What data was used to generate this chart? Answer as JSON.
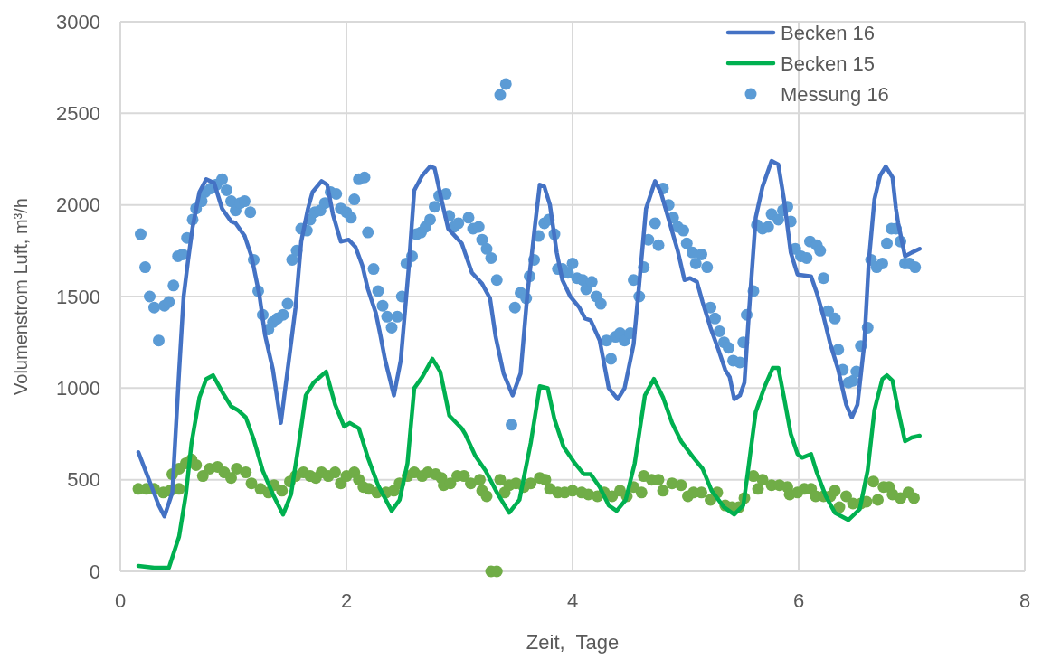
{
  "chart_data": {
    "type": "line",
    "xlabel": "Zeit,  Tage",
    "ylabel": "Volumenstrom Luft, m³/h",
    "xlim": [
      0,
      8
    ],
    "xticks": [
      0,
      2,
      4,
      6,
      8
    ],
    "ylim": [
      0,
      3000
    ],
    "yticks": [
      0,
      500,
      1000,
      1500,
      2000,
      2500,
      3000
    ],
    "grid": true,
    "legend": "top right",
    "series": [
      {
        "name": "Becken 16",
        "color": "#4472c4",
        "line_style": "solid",
        "x": [
          0.16,
          0.34,
          0.39,
          0.46,
          0.52,
          0.56,
          0.6,
          0.64,
          0.7,
          0.76,
          0.83,
          0.9,
          0.98,
          1.02,
          1.1,
          1.16,
          1.23,
          1.28,
          1.35,
          1.42,
          1.48,
          1.55,
          1.6,
          1.66,
          1.7,
          1.78,
          1.83,
          1.88,
          1.95,
          2.02,
          2.08,
          2.14,
          2.19,
          2.26,
          2.3,
          2.34,
          2.42,
          2.48,
          2.55,
          2.6,
          2.67,
          2.74,
          2.78,
          2.84,
          2.9,
          2.96,
          3.02,
          3.11,
          3.2,
          3.27,
          3.32,
          3.39,
          3.47,
          3.54,
          3.6,
          3.67,
          3.71,
          3.75,
          3.8,
          3.86,
          3.91,
          3.98,
          4.06,
          4.11,
          4.16,
          4.24,
          4.32,
          4.4,
          4.46,
          4.54,
          4.59,
          4.65,
          4.73,
          4.78,
          4.86,
          4.93,
          4.99,
          5.04,
          5.1,
          5.15,
          5.22,
          5.29,
          5.35,
          5.39,
          5.43,
          5.48,
          5.52,
          5.56,
          5.62,
          5.68,
          5.76,
          5.82,
          5.87,
          5.93,
          5.99,
          6.11,
          6.16,
          6.22,
          6.28,
          6.35,
          6.42,
          6.47,
          6.52,
          6.58,
          6.62,
          6.67,
          6.72,
          6.77,
          6.83,
          6.86,
          6.88,
          6.94,
          7.0,
          7.07
        ],
        "values": [
          650,
          360,
          300,
          430,
          1090,
          1500,
          1700,
          1880,
          2070,
          2140,
          2120,
          1980,
          1910,
          1900,
          1830,
          1720,
          1510,
          1290,
          1100,
          810,
          1100,
          1440,
          1800,
          1980,
          2070,
          2130,
          2110,
          1950,
          1800,
          1810,
          1770,
          1670,
          1540,
          1410,
          1290,
          1160,
          960,
          1150,
          1650,
          2080,
          2160,
          2210,
          2200,
          2030,
          1870,
          1830,
          1790,
          1630,
          1570,
          1490,
          1280,
          1080,
          960,
          1080,
          1510,
          1900,
          2110,
          2100,
          2000,
          1740,
          1590,
          1500,
          1440,
          1380,
          1370,
          1260,
          1000,
          940,
          1000,
          1240,
          1570,
          1980,
          2130,
          2070,
          1900,
          1750,
          1590,
          1600,
          1580,
          1470,
          1330,
          1210,
          1100,
          1060,
          940,
          960,
          1030,
          1410,
          1930,
          2100,
          2240,
          2220,
          2030,
          1740,
          1620,
          1610,
          1520,
          1390,
          1240,
          1100,
          910,
          840,
          910,
          1240,
          1690,
          2030,
          2160,
          2210,
          2150,
          1980,
          1900,
          1720,
          1740,
          1760
        ]
      },
      {
        "name": "Becken 15",
        "color": "#00b050",
        "line_style": "solid",
        "x": [
          0.16,
          0.3,
          0.43,
          0.52,
          0.58,
          0.63,
          0.7,
          0.76,
          0.82,
          0.91,
          0.98,
          1.04,
          1.11,
          1.18,
          1.26,
          1.35,
          1.44,
          1.51,
          1.58,
          1.64,
          1.71,
          1.82,
          1.9,
          1.98,
          2.03,
          2.11,
          2.19,
          2.28,
          2.4,
          2.47,
          2.54,
          2.6,
          2.67,
          2.76,
          2.83,
          2.91,
          3.02,
          3.05,
          3.14,
          3.23,
          3.34,
          3.44,
          3.53,
          3.63,
          3.71,
          3.78,
          3.84,
          3.92,
          4.02,
          4.1,
          4.16,
          4.24,
          4.32,
          4.39,
          4.47,
          4.55,
          4.64,
          4.72,
          4.8,
          4.88,
          4.96,
          5.07,
          5.15,
          5.23,
          5.34,
          5.43,
          5.51,
          5.55,
          5.62,
          5.7,
          5.77,
          5.82,
          5.87,
          5.93,
          5.99,
          6.03,
          6.11,
          6.16,
          6.24,
          6.32,
          6.44,
          6.54,
          6.61,
          6.67,
          6.74,
          6.78,
          6.83,
          6.88,
          6.94,
          7.0,
          7.07
        ],
        "values": [
          30,
          20,
          20,
          190,
          420,
          700,
          950,
          1050,
          1070,
          970,
          900,
          880,
          840,
          720,
          550,
          420,
          310,
          420,
          700,
          960,
          1030,
          1090,
          910,
          790,
          810,
          780,
          620,
          470,
          330,
          390,
          590,
          1000,
          1060,
          1160,
          1090,
          850,
          780,
          750,
          630,
          550,
          420,
          320,
          390,
          700,
          1010,
          1000,
          830,
          680,
          590,
          530,
          530,
          460,
          360,
          330,
          390,
          590,
          960,
          1050,
          950,
          810,
          710,
          620,
          560,
          440,
          350,
          310,
          360,
          540,
          870,
          1010,
          1110,
          1110,
          950,
          750,
          640,
          620,
          640,
          540,
          410,
          320,
          280,
          340,
          550,
          880,
          1050,
          1070,
          1040,
          880,
          710,
          730,
          740
        ]
      },
      {
        "name": "Messung 16",
        "type": "scatter",
        "marker": "circle",
        "color": "#5b9bd5",
        "x": [
          0.18,
          0.22,
          0.26,
          0.3,
          0.34,
          0.39,
          0.43,
          0.47,
          0.51,
          0.55,
          0.59,
          0.64,
          0.67,
          0.72,
          0.75,
          0.8,
          0.85,
          0.9,
          0.94,
          0.98,
          1.02,
          1.06,
          1.1,
          1.15,
          1.18,
          1.22,
          1.26,
          1.31,
          1.35,
          1.39,
          1.44,
          1.48,
          1.52,
          1.56,
          1.6,
          1.65,
          1.68,
          1.72,
          1.77,
          1.81,
          1.86,
          1.91,
          1.95,
          2.0,
          2.04,
          2.07,
          2.11,
          2.16,
          2.19,
          2.24,
          2.28,
          2.32,
          2.36,
          2.4,
          2.45,
          2.49,
          2.53,
          2.58,
          2.62,
          2.66,
          2.7,
          2.74,
          2.78,
          2.82,
          2.88,
          2.91,
          2.95,
          2.99,
          3.08,
          3.12,
          3.17,
          3.2,
          3.24,
          3.28,
          3.33,
          3.36,
          3.41,
          3.46,
          3.49,
          3.54,
          3.59,
          3.62,
          3.66,
          3.7,
          3.75,
          3.79,
          3.84,
          3.87,
          3.91,
          3.96,
          4.0,
          4.04,
          4.09,
          4.12,
          4.17,
          4.21,
          4.25,
          4.3,
          4.34,
          4.38,
          4.42,
          4.46,
          4.51,
          4.54,
          4.59,
          4.63,
          4.67,
          4.73,
          4.76,
          4.8,
          4.85,
          4.89,
          4.93,
          4.98,
          5.01,
          5.06,
          5.09,
          5.14,
          5.19,
          5.22,
          5.26,
          5.3,
          5.34,
          5.38,
          5.42,
          5.48,
          5.51,
          5.54,
          5.6,
          5.63,
          5.68,
          5.73,
          5.76,
          5.82,
          5.86,
          5.9,
          5.93,
          5.97,
          6.02,
          6.07,
          6.1,
          6.16,
          6.19,
          6.22,
          6.26,
          6.32,
          6.35,
          6.39,
          6.44,
          6.48,
          6.51,
          6.55,
          6.61,
          6.64,
          6.69,
          6.74,
          6.78,
          6.82,
          6.86,
          6.9,
          6.94,
          6.98,
          7.03
        ],
        "values": [
          1840,
          1660,
          1500,
          1440,
          1260,
          1450,
          1470,
          1560,
          1720,
          1730,
          1820,
          1920,
          1980,
          2020,
          2070,
          2090,
          2110,
          2140,
          2080,
          2020,
          1970,
          2010,
          2020,
          1960,
          1700,
          1530,
          1400,
          1320,
          1360,
          1380,
          1400,
          1460,
          1700,
          1750,
          1870,
          1860,
          1920,
          1960,
          1970,
          2010,
          2070,
          2060,
          1980,
          1960,
          1930,
          2030,
          2140,
          2150,
          1850,
          1650,
          1530,
          1450,
          1390,
          1330,
          1390,
          1500,
          1680,
          1720,
          1840,
          1850,
          1880,
          1920,
          1990,
          2050,
          2060,
          1940,
          1880,
          1900,
          1930,
          1870,
          1880,
          1810,
          1760,
          1710,
          1590,
          2600,
          2660,
          800,
          1440,
          1520,
          1490,
          1610,
          1700,
          1830,
          1900,
          1920,
          1840,
          1650,
          1650,
          1630,
          1680,
          1600,
          1590,
          1540,
          1580,
          1500,
          1460,
          1260,
          1160,
          1280,
          1300,
          1260,
          1300,
          1590,
          1500,
          1660,
          1810,
          1900,
          1780,
          2090,
          2000,
          1930,
          1880,
          1860,
          1790,
          1740,
          1680,
          1730,
          1660,
          1440,
          1380,
          1310,
          1250,
          1220,
          1150,
          1140,
          1250,
          1400,
          1530,
          1890,
          1870,
          1880,
          1950,
          1920,
          1970,
          1990,
          1910,
          1760,
          1720,
          1710,
          1800,
          1780,
          1750,
          1600,
          1420,
          1380,
          1210,
          1100,
          1030,
          1040,
          1090,
          1230,
          1330,
          1700,
          1660,
          1680,
          1790,
          1870,
          1870,
          1800,
          1680,
          1680,
          1660
        ]
      },
      {
        "type": "scatter",
        "marker": "circle",
        "color": "#70ad47",
        "x": [
          0.16,
          0.23,
          0.3,
          0.38,
          0.44,
          0.52,
          0.46,
          0.52,
          0.58,
          0.63,
          0.67,
          0.73,
          0.79,
          0.86,
          0.92,
          0.98,
          1.03,
          1.11,
          1.16,
          1.24,
          1.31,
          1.36,
          1.43,
          1.5,
          1.55,
          1.62,
          1.68,
          1.73,
          1.78,
          1.84,
          1.9,
          1.95,
          2.0,
          2.07,
          2.11,
          2.15,
          2.2,
          2.27,
          2.35,
          2.42,
          2.47,
          2.54,
          2.6,
          2.67,
          2.72,
          2.79,
          2.84,
          2.86,
          2.92,
          2.98,
          3.04,
          3.1,
          3.18,
          3.2,
          3.24,
          3.28,
          3.33,
          3.36,
          3.4,
          3.44,
          3.5,
          3.57,
          3.63,
          3.71,
          3.76,
          3.8,
          3.87,
          3.93,
          4.0,
          4.08,
          4.14,
          4.22,
          4.28,
          4.35,
          4.42,
          4.48,
          4.54,
          4.61,
          4.63,
          4.7,
          4.76,
          4.8,
          4.88,
          4.96,
          5.02,
          5.07,
          5.14,
          5.22,
          5.28,
          5.35,
          5.41,
          5.47,
          5.52,
          5.6,
          5.64,
          5.68,
          5.76,
          5.83,
          5.9,
          5.92,
          5.99,
          6.05,
          6.11,
          6.15,
          6.22,
          6.28,
          6.32,
          6.36,
          6.42,
          6.48,
          6.55,
          6.6,
          6.66,
          6.7,
          6.75,
          6.8,
          6.83,
          6.9,
          6.97,
          7.02
        ],
        "values": [
          450,
          450,
          450,
          430,
          440,
          450,
          530,
          560,
          590,
          610,
          580,
          520,
          560,
          570,
          540,
          510,
          560,
          540,
          480,
          450,
          430,
          470,
          440,
          490,
          520,
          540,
          520,
          510,
          540,
          520,
          540,
          480,
          520,
          540,
          500,
          460,
          450,
          430,
          430,
          440,
          480,
          520,
          540,
          520,
          540,
          530,
          510,
          470,
          480,
          520,
          520,
          480,
          500,
          440,
          410,
          0,
          0,
          500,
          430,
          470,
          480,
          460,
          480,
          510,
          500,
          450,
          430,
          430,
          440,
          430,
          420,
          410,
          430,
          410,
          440,
          410,
          460,
          430,
          520,
          500,
          500,
          440,
          480,
          470,
          410,
          430,
          430,
          390,
          430,
          360,
          350,
          350,
          400,
          520,
          450,
          500,
          470,
          470,
          460,
          420,
          430,
          450,
          450,
          410,
          410,
          410,
          440,
          350,
          410,
          370,
          370,
          380,
          490,
          390,
          460,
          460,
          420,
          400,
          430,
          400
        ]
      }
    ]
  }
}
